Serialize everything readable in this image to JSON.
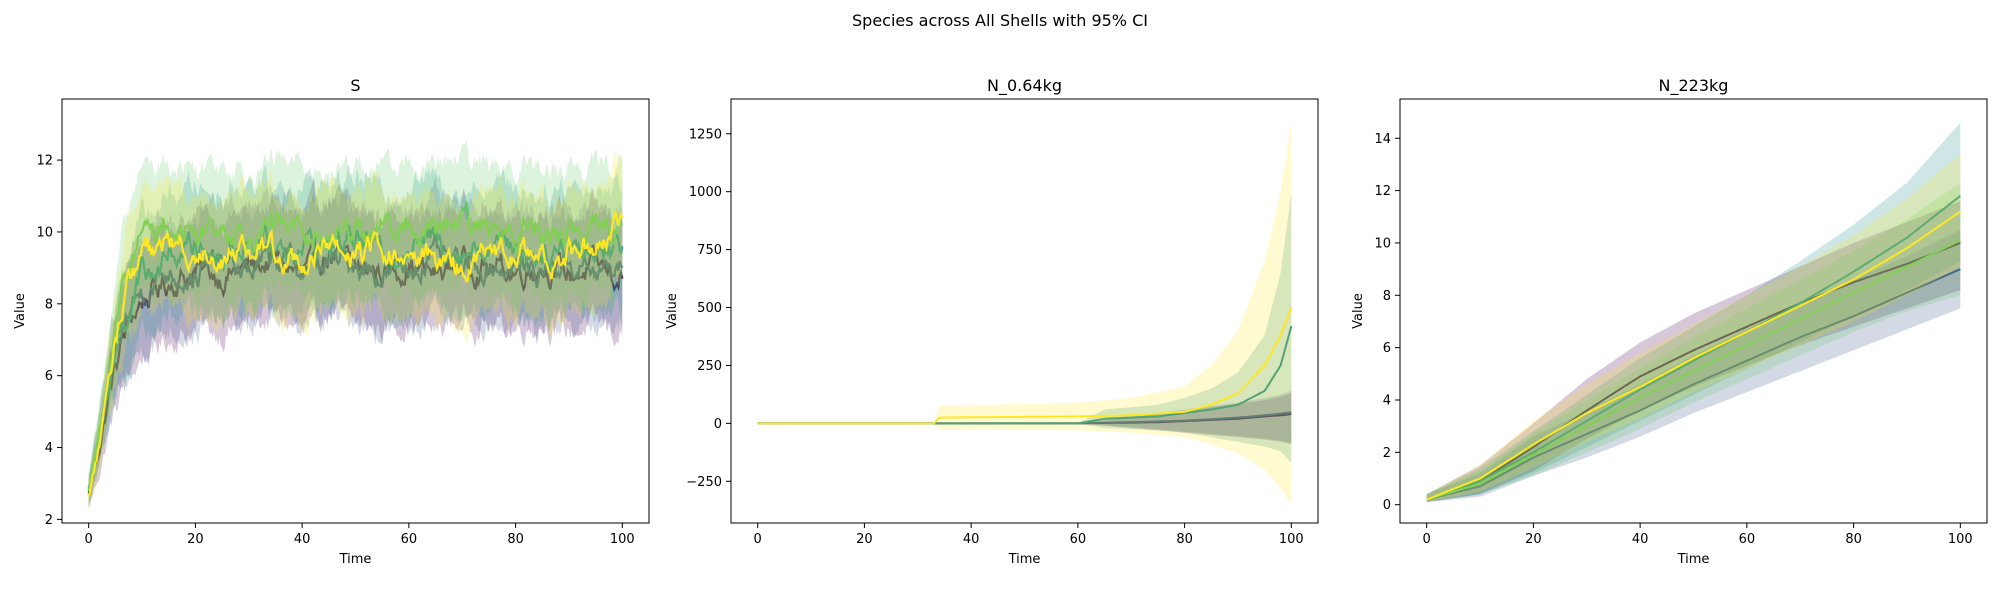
{
  "suptitle": "Species across All Shells with 95% CI",
  "palette": [
    "#440154",
    "#482475",
    "#414487",
    "#355f8d",
    "#2a788e",
    "#21918c",
    "#22a884",
    "#44bf70",
    "#7ad151",
    "#bddf26",
    "#fde725"
  ],
  "chart_data": [
    {
      "type": "line",
      "title": "S",
      "xlabel": "Time",
      "ylabel": "Value",
      "xlim": [
        -5,
        105
      ],
      "ylim": [
        1.9,
        13.7
      ],
      "xticks": [
        0,
        20,
        40,
        60,
        80,
        100
      ],
      "yticks": [
        2,
        4,
        6,
        8,
        10,
        12
      ],
      "ci": "95%",
      "series": [
        {
          "color": "#440154",
          "x": [
            0,
            2,
            4,
            6,
            8,
            10,
            15,
            20,
            25,
            30,
            35,
            40,
            45,
            50,
            55,
            60,
            65,
            70,
            75,
            80,
            85,
            90,
            95,
            100
          ],
          "values": [
            2.7,
            4.0,
            5.6,
            6.8,
            7.6,
            8.1,
            8.6,
            8.9,
            8.8,
            9.0,
            9.2,
            8.8,
            9.4,
            9.0,
            8.9,
            9.1,
            8.8,
            9.2,
            9.0,
            8.9,
            9.1,
            8.8,
            9.0,
            8.7
          ],
          "ci_half": 1.6
        },
        {
          "color": "#3b528b",
          "x": [
            0,
            2,
            4,
            6,
            8,
            10,
            15,
            20,
            25,
            30,
            35,
            40,
            45,
            50,
            55,
            60,
            65,
            70,
            75,
            80,
            85,
            90,
            95,
            100
          ],
          "values": [
            2.8,
            4.2,
            5.8,
            7.0,
            7.9,
            8.4,
            8.9,
            8.8,
            9.1,
            8.9,
            9.3,
            9.0,
            9.1,
            9.2,
            8.8,
            9.0,
            9.3,
            8.9,
            9.1,
            9.0,
            8.9,
            9.2,
            8.8,
            9.0
          ],
          "ci_half": 1.6
        },
        {
          "color": "#21918c",
          "x": [
            0,
            2,
            4,
            6,
            8,
            10,
            15,
            20,
            25,
            30,
            35,
            40,
            45,
            50,
            55,
            60,
            65,
            70,
            75,
            80,
            85,
            90,
            95,
            100
          ],
          "values": [
            2.9,
            4.3,
            6.0,
            7.3,
            8.1,
            8.7,
            9.3,
            9.6,
            9.4,
            9.8,
            9.5,
            9.7,
            9.6,
            9.9,
            9.4,
            9.6,
            9.8,
            9.5,
            9.7,
            9.6,
            9.4,
            9.7,
            9.5,
            9.6
          ],
          "ci_half": 1.7
        },
        {
          "color": "#5ec962",
          "x": [
            0,
            2,
            4,
            6,
            8,
            10,
            15,
            20,
            25,
            30,
            35,
            40,
            45,
            50,
            55,
            60,
            65,
            70,
            75,
            80,
            85,
            90,
            95,
            100
          ],
          "values": [
            2.8,
            4.5,
            6.4,
            8.0,
            9.2,
            10.0,
            10.2,
            10.0,
            10.3,
            9.9,
            10.2,
            10.1,
            9.8,
            10.2,
            10.0,
            10.1,
            9.9,
            10.3,
            10.0,
            10.2,
            9.9,
            10.1,
            10.0,
            10.2
          ],
          "ci_half": 1.8
        },
        {
          "color": "#fde725",
          "x": [
            0,
            2,
            4,
            6,
            8,
            10,
            15,
            20,
            25,
            30,
            35,
            40,
            45,
            50,
            55,
            60,
            65,
            70,
            75,
            80,
            85,
            90,
            95,
            100
          ],
          "values": [
            2.6,
            4.1,
            6.1,
            7.8,
            8.8,
            9.4,
            9.7,
            9.5,
            9.3,
            9.6,
            9.4,
            9.2,
            9.5,
            9.3,
            9.6,
            9.1,
            9.4,
            9.0,
            9.3,
            9.5,
            9.2,
            9.4,
            9.7,
            10.4
          ],
          "ci_half": 1.7
        }
      ]
    },
    {
      "type": "line",
      "title": "N_0.64kg",
      "xlabel": "Time",
      "ylabel": "Value",
      "xlim": [
        -5,
        105
      ],
      "ylim": [
        -430,
        1400
      ],
      "xticks": [
        0,
        20,
        40,
        60,
        80,
        100
      ],
      "yticks": [
        -250,
        0,
        250,
        500,
        750,
        1000,
        1250
      ],
      "ci": "95%",
      "series": [
        {
          "color": "#440154",
          "x": [
            0,
            40,
            60,
            75,
            80,
            85,
            90,
            95,
            98,
            100
          ],
          "values": [
            0,
            0,
            0,
            5,
            10,
            15,
            20,
            30,
            35,
            40
          ],
          "ci_lower": [
            0,
            0,
            0,
            -30,
            -40,
            -50,
            -60,
            -70,
            -80,
            -90
          ],
          "ci_upper": [
            0,
            0,
            0,
            40,
            55,
            70,
            85,
            100,
            115,
            130
          ]
        },
        {
          "color": "#3b528b",
          "x": [
            0,
            40,
            60,
            75,
            80,
            85,
            90,
            95,
            98,
            100
          ],
          "values": [
            0,
            0,
            0,
            8,
            12,
            18,
            25,
            35,
            42,
            48
          ],
          "ci_lower": [
            0,
            0,
            0,
            -25,
            -35,
            -45,
            -55,
            -65,
            -75,
            -85
          ],
          "ci_upper": [
            0,
            0,
            0,
            45,
            60,
            75,
            90,
            110,
            125,
            140
          ]
        },
        {
          "color": "#21918c",
          "x": [
            0,
            40,
            60,
            65,
            75,
            80,
            85,
            90,
            95,
            98,
            100
          ],
          "values": [
            0,
            0,
            0,
            20,
            30,
            45,
            60,
            80,
            140,
            250,
            420
          ],
          "ci_lower": [
            0,
            0,
            0,
            -20,
            -30,
            -40,
            -60,
            -80,
            -100,
            -120,
            -170
          ],
          "ci_upper": [
            0,
            0,
            0,
            60,
            80,
            110,
            150,
            220,
            380,
            650,
            1000
          ]
        },
        {
          "color": "#fde725",
          "x": [
            0,
            33,
            34,
            60,
            70,
            80,
            85,
            90,
            95,
            98,
            100
          ],
          "values": [
            0,
            0,
            25,
            30,
            35,
            50,
            80,
            130,
            250,
            380,
            500
          ],
          "ci_lower": [
            0,
            0,
            -25,
            -30,
            -40,
            -60,
            -90,
            -130,
            -200,
            -280,
            -350
          ],
          "ci_upper": [
            0,
            0,
            75,
            90,
            110,
            160,
            250,
            400,
            700,
            1000,
            1300
          ]
        }
      ]
    },
    {
      "type": "line",
      "title": "N_223kg",
      "xlabel": "Time",
      "ylabel": "Value",
      "xlim": [
        -5,
        105
      ],
      "ylim": [
        -0.7,
        15.5
      ],
      "xticks": [
        0,
        20,
        40,
        60,
        80,
        100
      ],
      "yticks": [
        0,
        2,
        4,
        6,
        8,
        10,
        12,
        14
      ],
      "ci": "95%",
      "series": [
        {
          "color": "#440154",
          "x": [
            0,
            10,
            20,
            30,
            40,
            50,
            60,
            70,
            80,
            90,
            100
          ],
          "values": [
            0.2,
            0.9,
            2.2,
            3.6,
            4.9,
            5.9,
            6.8,
            7.7,
            8.5,
            9.2,
            10.0
          ],
          "ci_lower": [
            0.1,
            0.4,
            1.3,
            2.5,
            3.6,
            4.5,
            5.3,
            6.1,
            6.8,
            7.5,
            8.2
          ],
          "ci_upper": [
            0.4,
            1.5,
            3.1,
            4.8,
            6.2,
            7.3,
            8.2,
            9.1,
            10.0,
            10.8,
            11.6
          ]
        },
        {
          "color": "#3b528b",
          "x": [
            0,
            10,
            20,
            30,
            40,
            50,
            60,
            70,
            80,
            90,
            100
          ],
          "values": [
            0.2,
            0.7,
            1.8,
            2.7,
            3.6,
            4.6,
            5.5,
            6.4,
            7.2,
            8.1,
            9.0
          ],
          "ci_lower": [
            0.1,
            0.3,
            1.1,
            1.8,
            2.6,
            3.5,
            4.3,
            5.1,
            5.9,
            6.7,
            7.5
          ],
          "ci_upper": [
            0.4,
            1.2,
            2.6,
            3.6,
            4.6,
            5.7,
            6.7,
            7.7,
            8.6,
            9.5,
            10.5
          ]
        },
        {
          "color": "#21918c",
          "x": [
            0,
            10,
            20,
            30,
            40,
            50,
            60,
            70,
            80,
            90,
            100
          ],
          "values": [
            0.2,
            0.9,
            2.0,
            3.2,
            4.4,
            5.5,
            6.6,
            7.7,
            8.9,
            10.2,
            11.8
          ],
          "ci_lower": [
            0.1,
            0.4,
            1.2,
            2.2,
            3.2,
            4.2,
            5.2,
            6.2,
            7.2,
            8.2,
            9.3
          ],
          "ci_upper": [
            0.4,
            1.4,
            2.8,
            4.2,
            5.6,
            6.8,
            8.0,
            9.3,
            10.7,
            12.3,
            14.6
          ]
        },
        {
          "color": "#5ec962",
          "x": [
            0,
            10,
            20,
            30,
            40,
            50,
            60,
            70,
            80,
            90,
            100
          ],
          "values": [
            0.2,
            0.8,
            1.9,
            3.0,
            4.1,
            5.1,
            6.1,
            7.1,
            8.1,
            9.1,
            10.1
          ],
          "ci_lower": [
            0.1,
            0.4,
            1.1,
            2.0,
            2.9,
            3.9,
            4.8,
            5.7,
            6.6,
            7.4,
            8.0
          ],
          "ci_upper": [
            0.4,
            1.3,
            2.7,
            4.0,
            5.2,
            6.4,
            7.5,
            8.6,
            9.7,
            10.9,
            12.3
          ]
        },
        {
          "color": "#fde725",
          "x": [
            0,
            10,
            20,
            30,
            40,
            50,
            60,
            70,
            80,
            90,
            100
          ],
          "values": [
            0.2,
            1.0,
            2.3,
            3.5,
            4.5,
            5.6,
            6.6,
            7.6,
            8.6,
            9.8,
            11.2
          ],
          "ci_lower": [
            0.1,
            0.5,
            1.4,
            2.4,
            3.3,
            4.3,
            5.2,
            6.1,
            7.0,
            8.0,
            9.1
          ],
          "ci_upper": [
            0.4,
            1.5,
            3.2,
            4.6,
            5.8,
            6.9,
            8.0,
            9.1,
            10.3,
            11.7,
            13.4
          ]
        }
      ]
    }
  ]
}
